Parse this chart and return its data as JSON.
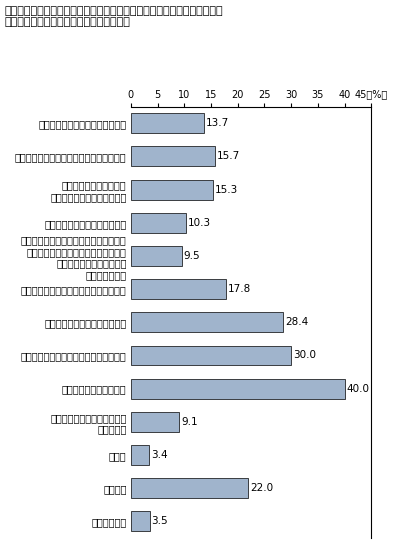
{
  "title_line1": "「個人情報の流出がこわい」「インターネットによる悪徳商法がこわい」",
  "title_line2": "「機器や通信にかかる費用が高い」が上位",
  "categories": [
    "画面の表示やデザインが見づらい",
    "書かれている内容が難しい、わかりづらい",
    "キーボードや周辺機器、\nソフトウェアが操作しづらい",
    "音声が聴きづらい、わからない",
    "点字ディスプレイ、ジョイスティック、\n読み上げソフト、その他の補助機器・\nソフトウェアの開発普及や\n操作性が不十分",
    "使い方を教えてくれる人が身近にいない",
    "機器や通信にかかる費用が高い",
    "インターネットによる悪徳商法がこわい",
    "個人情報の流出がこわい",
    "ホームページや掲示板などの\n訹謗・中傷",
    "その他",
    "特にない",
    "不明・無回答"
  ],
  "values": [
    13.7,
    15.7,
    15.3,
    10.3,
    9.5,
    17.8,
    28.4,
    30.0,
    40.0,
    9.1,
    3.4,
    22.0,
    3.5
  ],
  "bar_color": "#a0b4cc",
  "bar_edge_color": "#000000",
  "xlim": [
    0,
    45
  ],
  "xticks": [
    0,
    5,
    10,
    15,
    20,
    25,
    30,
    35,
    40,
    45
  ],
  "background_color": "#ffffff",
  "value_fontsize": 7.5,
  "label_fontsize": 7,
  "title_fontsize": 8
}
